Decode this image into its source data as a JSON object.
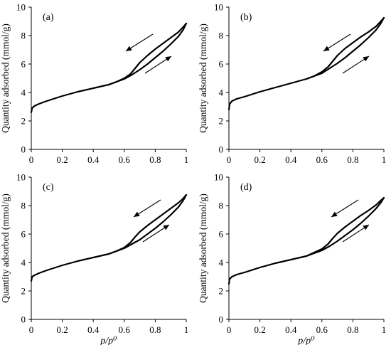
{
  "chart_data": [
    {
      "type": "line",
      "panel_label": "(a)",
      "xlabel": "",
      "ylabel": "Quantity adsorbed (mmol/g)",
      "xlim": [
        0,
        1
      ],
      "ylim": [
        0,
        10
      ],
      "x_ticks": [
        "0",
        "0.2",
        "0.4",
        "0.6",
        "0.8",
        "1"
      ],
      "y_ticks": [
        "0",
        "2",
        "4",
        "6",
        "8",
        "10"
      ],
      "grid": false,
      "legend": "none",
      "series": [
        {
          "x": [
            0.0,
            0.005,
            0.02,
            0.05,
            0.1,
            0.2,
            0.3,
            0.4,
            0.5,
            0.55,
            0.6,
            0.65,
            0.7,
            0.75,
            0.8,
            0.85,
            0.9,
            0.95,
            0.98,
            1.0
          ],
          "y": [
            2.6,
            2.9,
            3.05,
            3.2,
            3.4,
            3.75,
            4.05,
            4.3,
            4.55,
            4.75,
            4.95,
            5.25,
            5.6,
            6.0,
            6.45,
            6.9,
            7.4,
            7.95,
            8.4,
            8.85
          ]
        },
        {
          "x": [
            1.0,
            0.98,
            0.95,
            0.9,
            0.85,
            0.8,
            0.75,
            0.7,
            0.67,
            0.64,
            0.6,
            0.55,
            0.5
          ],
          "y": [
            8.85,
            8.6,
            8.25,
            7.85,
            7.45,
            7.05,
            6.6,
            6.1,
            5.7,
            5.3,
            5.0,
            4.75,
            4.55
          ]
        }
      ]
    },
    {
      "type": "line",
      "panel_label": "(b)",
      "xlabel": "",
      "ylabel": "Quantity adsorbed (mmol/g)",
      "xlim": [
        0,
        1
      ],
      "ylim": [
        0,
        10
      ],
      "x_ticks": [
        "0",
        "0.2",
        "0.4",
        "0.6",
        "0.8",
        "1"
      ],
      "y_ticks": [
        "0",
        "2",
        "4",
        "6",
        "8",
        "10"
      ],
      "grid": false,
      "legend": "none",
      "series": [
        {
          "x": [
            0.0,
            0.005,
            0.02,
            0.05,
            0.1,
            0.2,
            0.3,
            0.4,
            0.5,
            0.55,
            0.6,
            0.65,
            0.7,
            0.75,
            0.8,
            0.85,
            0.9,
            0.95,
            0.98,
            1.0
          ],
          "y": [
            2.8,
            3.2,
            3.4,
            3.55,
            3.7,
            4.05,
            4.35,
            4.65,
            4.95,
            5.15,
            5.35,
            5.7,
            6.05,
            6.45,
            6.9,
            7.35,
            7.85,
            8.4,
            8.85,
            9.25
          ]
        },
        {
          "x": [
            1.0,
            0.98,
            0.95,
            0.9,
            0.85,
            0.8,
            0.75,
            0.7,
            0.67,
            0.64,
            0.6,
            0.55,
            0.5
          ],
          "y": [
            9.25,
            9.0,
            8.65,
            8.25,
            7.9,
            7.5,
            7.1,
            6.6,
            6.2,
            5.8,
            5.45,
            5.15,
            4.95
          ]
        }
      ]
    },
    {
      "type": "line",
      "panel_label": "(c)",
      "xlabel": "p/p⁰",
      "ylabel": "Quantity adsorbed (mmol/g)",
      "xlim": [
        0,
        1
      ],
      "ylim": [
        0,
        10
      ],
      "x_ticks": [
        "0",
        "0.2",
        "0.4",
        "0.6",
        "0.8",
        "1"
      ],
      "y_ticks": [
        "0",
        "2",
        "4",
        "6",
        "8",
        "10"
      ],
      "grid": false,
      "legend": "none",
      "series": [
        {
          "x": [
            0.0,
            0.005,
            0.02,
            0.05,
            0.1,
            0.2,
            0.3,
            0.4,
            0.5,
            0.55,
            0.6,
            0.65,
            0.7,
            0.75,
            0.8,
            0.85,
            0.9,
            0.95,
            0.98,
            1.0
          ],
          "y": [
            2.7,
            3.0,
            3.1,
            3.25,
            3.45,
            3.8,
            4.1,
            4.35,
            4.6,
            4.8,
            5.0,
            5.3,
            5.6,
            6.0,
            6.4,
            6.85,
            7.35,
            7.9,
            8.35,
            8.75
          ]
        },
        {
          "x": [
            1.0,
            0.98,
            0.95,
            0.9,
            0.85,
            0.8,
            0.75,
            0.7,
            0.67,
            0.64,
            0.6,
            0.55,
            0.5
          ],
          "y": [
            8.75,
            8.5,
            8.2,
            7.8,
            7.4,
            7.0,
            6.6,
            6.15,
            5.8,
            5.4,
            5.05,
            4.8,
            4.6
          ]
        }
      ]
    },
    {
      "type": "line",
      "panel_label": "(d)",
      "xlabel": "p/p⁰",
      "ylabel": "Quantity adsorbed (mmol/g)",
      "xlim": [
        0,
        1
      ],
      "ylim": [
        0,
        10
      ],
      "x_ticks": [
        "0",
        "0.2",
        "0.4",
        "0.6",
        "0.8",
        "1"
      ],
      "y_ticks": [
        "0",
        "2",
        "4",
        "6",
        "8",
        "10"
      ],
      "grid": false,
      "legend": "none",
      "series": [
        {
          "x": [
            0.0,
            0.005,
            0.02,
            0.05,
            0.1,
            0.2,
            0.3,
            0.4,
            0.5,
            0.55,
            0.6,
            0.65,
            0.7,
            0.75,
            0.8,
            0.85,
            0.9,
            0.95,
            0.98,
            1.0
          ],
          "y": [
            2.5,
            2.85,
            3.0,
            3.15,
            3.3,
            3.65,
            3.95,
            4.2,
            4.45,
            4.65,
            4.85,
            5.15,
            5.5,
            5.9,
            6.3,
            6.75,
            7.25,
            7.8,
            8.2,
            8.55
          ]
        },
        {
          "x": [
            1.0,
            0.98,
            0.95,
            0.9,
            0.85,
            0.8,
            0.75,
            0.7,
            0.67,
            0.64,
            0.6,
            0.55,
            0.5
          ],
          "y": [
            8.55,
            8.35,
            8.05,
            7.65,
            7.3,
            6.9,
            6.5,
            6.05,
            5.7,
            5.3,
            4.95,
            4.7,
            4.45
          ]
        }
      ]
    }
  ]
}
